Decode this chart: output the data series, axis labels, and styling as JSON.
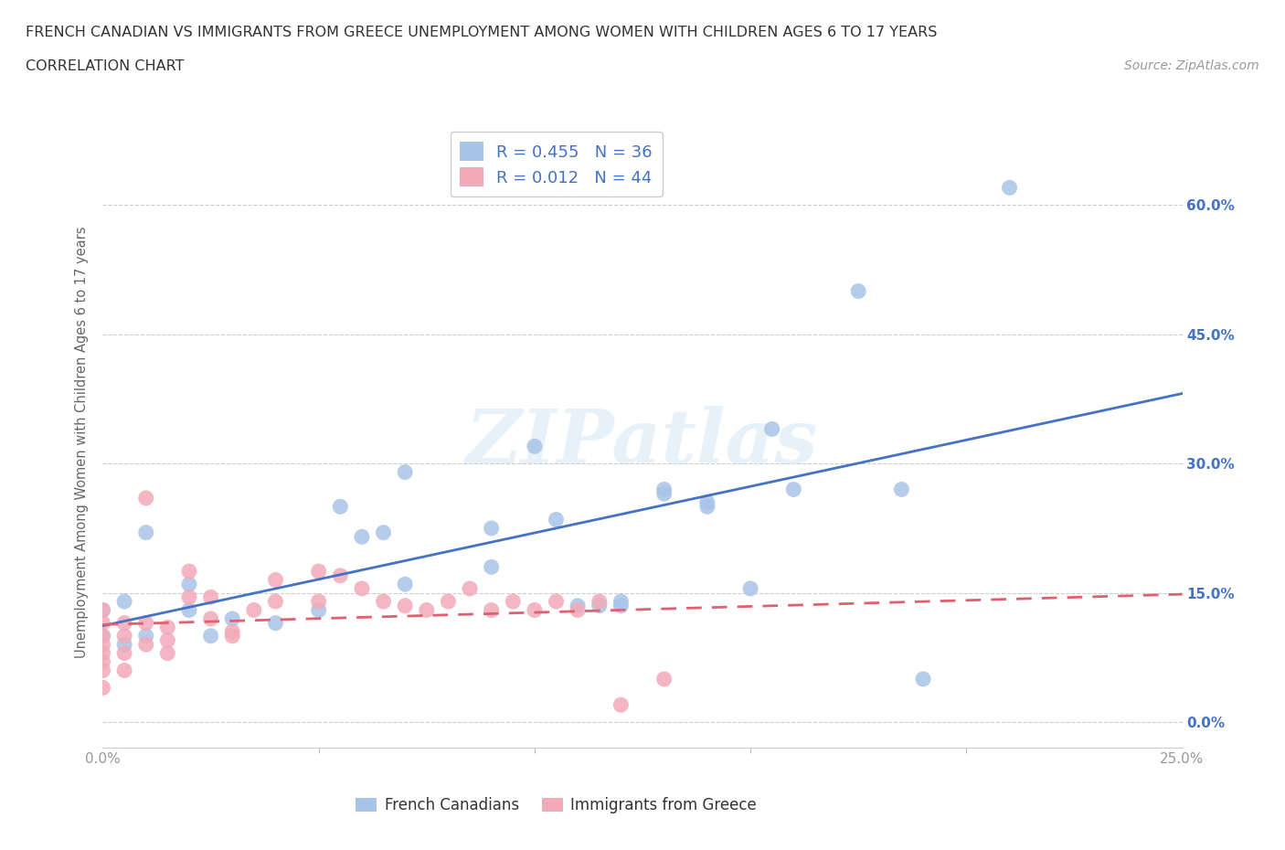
{
  "title_line1": "FRENCH CANADIAN VS IMMIGRANTS FROM GREECE UNEMPLOYMENT AMONG WOMEN WITH CHILDREN AGES 6 TO 17 YEARS",
  "title_line2": "CORRELATION CHART",
  "source": "Source: ZipAtlas.com",
  "ylabel": "Unemployment Among Women with Children Ages 6 to 17 years",
  "xlim": [
    0.0,
    0.25
  ],
  "ylim": [
    -0.03,
    0.68
  ],
  "xticks_bottom": [
    0.0,
    0.25
  ],
  "xticklabels_bottom": [
    "0.0%",
    "25.0%"
  ],
  "yticks": [
    0.0,
    0.15,
    0.3,
    0.45,
    0.6
  ],
  "yticklabels_right": [
    "0.0%",
    "15.0%",
    "30.0%",
    "45.0%",
    "60.0%"
  ],
  "blue_color": "#a8c4e8",
  "pink_color": "#f2aab8",
  "trend_blue": "#4472c4",
  "trend_pink": "#e06070",
  "legend_R_blue": "0.455",
  "legend_N_blue": "36",
  "legend_R_pink": "0.012",
  "legend_N_pink": "44",
  "legend_label_blue": "French Canadians",
  "legend_label_pink": "Immigrants from Greece",
  "watermark": "ZIPatlas",
  "blue_points_x": [
    0.0,
    0.0,
    0.005,
    0.005,
    0.01,
    0.01,
    0.02,
    0.02,
    0.025,
    0.03,
    0.04,
    0.05,
    0.055,
    0.06,
    0.065,
    0.07,
    0.07,
    0.09,
    0.09,
    0.1,
    0.105,
    0.11,
    0.115,
    0.12,
    0.13,
    0.14,
    0.155,
    0.16,
    0.175,
    0.185,
    0.19,
    0.21,
    0.12,
    0.13,
    0.14,
    0.15
  ],
  "blue_points_y": [
    0.1,
    0.13,
    0.09,
    0.14,
    0.1,
    0.22,
    0.13,
    0.16,
    0.1,
    0.12,
    0.115,
    0.13,
    0.25,
    0.215,
    0.22,
    0.16,
    0.29,
    0.18,
    0.225,
    0.32,
    0.235,
    0.135,
    0.135,
    0.135,
    0.265,
    0.255,
    0.34,
    0.27,
    0.5,
    0.27,
    0.05,
    0.62,
    0.14,
    0.27,
    0.25,
    0.155
  ],
  "pink_points_x": [
    0.0,
    0.0,
    0.0,
    0.0,
    0.0,
    0.0,
    0.0,
    0.0,
    0.005,
    0.005,
    0.005,
    0.005,
    0.01,
    0.01,
    0.01,
    0.015,
    0.015,
    0.015,
    0.02,
    0.02,
    0.025,
    0.025,
    0.03,
    0.03,
    0.035,
    0.04,
    0.04,
    0.05,
    0.05,
    0.055,
    0.06,
    0.065,
    0.07,
    0.075,
    0.08,
    0.085,
    0.09,
    0.095,
    0.1,
    0.105,
    0.11,
    0.115,
    0.12,
    0.13
  ],
  "pink_points_y": [
    0.04,
    0.06,
    0.07,
    0.08,
    0.09,
    0.1,
    0.115,
    0.13,
    0.06,
    0.08,
    0.1,
    0.115,
    0.09,
    0.115,
    0.26,
    0.08,
    0.095,
    0.11,
    0.175,
    0.145,
    0.12,
    0.145,
    0.1,
    0.105,
    0.13,
    0.14,
    0.165,
    0.14,
    0.175,
    0.17,
    0.155,
    0.14,
    0.135,
    0.13,
    0.14,
    0.155,
    0.13,
    0.14,
    0.13,
    0.14,
    0.13,
    0.14,
    0.02,
    0.05
  ],
  "grid_color": "#cccccc",
  "background_color": "#ffffff",
  "title_color": "#333333",
  "axis_label_color": "#666666",
  "tick_label_color": "#999999",
  "source_color": "#999999",
  "right_tick_color": "#4472c4"
}
